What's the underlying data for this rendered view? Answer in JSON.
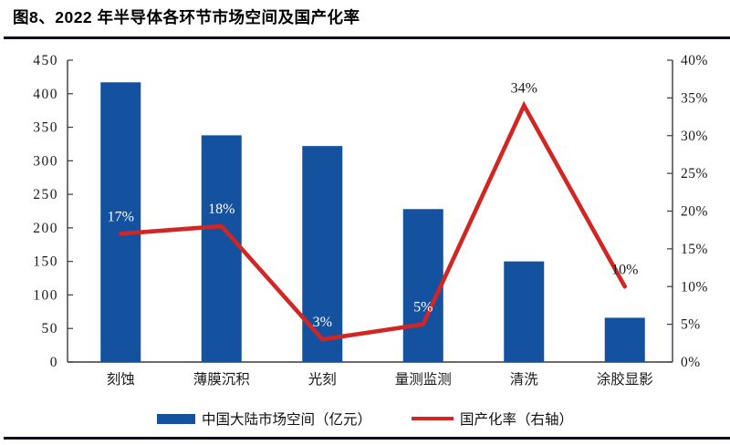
{
  "title": "图8、2022 年半导体各环节市场空间及国产化率",
  "colors": {
    "bar": "#14519E",
    "line": "#D22624",
    "axis": "#3a3a3a",
    "tick_text": "#1a1a1a",
    "rule": "#101020"
  },
  "chart_data": {
    "type": "combo-bar-line",
    "categories": [
      "刻蚀",
      "薄膜沉积",
      "光刻",
      "量测监测",
      "清洗",
      "涂胶显影"
    ],
    "series": [
      {
        "name": "中国大陆市场空间（亿元）",
        "type": "bar",
        "axis": "left",
        "color": "#14519E",
        "values": [
          417,
          338,
          322,
          228,
          150,
          66
        ]
      },
      {
        "name": "国产化率（右轴）",
        "type": "line",
        "axis": "right",
        "color": "#D22624",
        "values": [
          17,
          18,
          3,
          5,
          34,
          10
        ],
        "point_labels": [
          "17%",
          "18%",
          "3%",
          "5%",
          "34%",
          "10%"
        ],
        "point_label_colors": [
          "#FFFFFF",
          "#FFFFFF",
          "#FFFFFF",
          "#FFFFFF",
          "#1A1A1A",
          "#1A1A1A"
        ]
      }
    ],
    "left_axis": {
      "min": 0,
      "max": 450,
      "step": 50,
      "tick_labels": [
        "0",
        "50",
        "100",
        "150",
        "200",
        "250",
        "300",
        "350",
        "400",
        "450"
      ]
    },
    "right_axis": {
      "min": 0,
      "max": 40,
      "step": 5,
      "tick_labels": [
        "0%",
        "5%",
        "10%",
        "15%",
        "20%",
        "25%",
        "30%",
        "35%",
        "40%"
      ]
    },
    "grid": false,
    "legend_position": "bottom"
  },
  "legend": {
    "items": [
      {
        "label": "中国大陆市场空间（亿元）",
        "swatch": "bar",
        "color": "#14519E"
      },
      {
        "label": "国产化率（右轴）",
        "swatch": "line",
        "color": "#D22624"
      }
    ]
  }
}
